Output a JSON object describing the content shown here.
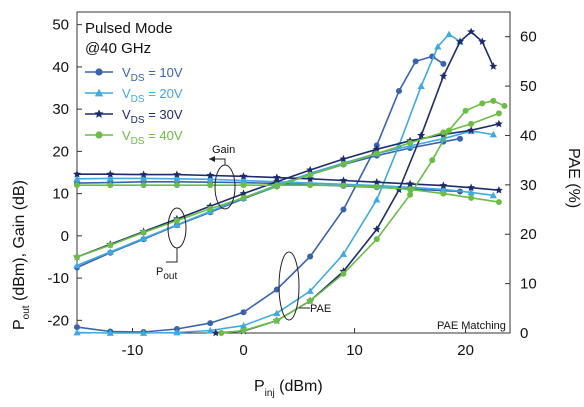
{
  "chart_data": {
    "type": "line",
    "title_lines": [
      "Pulsed Mode",
      "@40 GHz"
    ],
    "xlabel": {
      "main": "P",
      "sub": "inj",
      "rest": " (dBm)"
    },
    "ylabel_left": {
      "main": "P",
      "sub": "out",
      "rest": " (dBm), Gain (dB)"
    },
    "ylabel_right": "PAE (%)",
    "xlim": [
      -15,
      24
    ],
    "ylim_left": [
      -23,
      53
    ],
    "ylim_right": [
      0,
      65
    ],
    "x_ticks": [
      -10,
      0,
      10,
      20
    ],
    "y_left_ticks": [
      -20,
      -10,
      0,
      10,
      20,
      30,
      40,
      50
    ],
    "y_right_ticks": [
      0,
      10,
      20,
      30,
      40,
      50,
      60
    ],
    "legend_position": "top-left",
    "annotations": {
      "gain": "Gain",
      "pout_main": "P",
      "pout_sub": "out",
      "pae": "PAE",
      "matching": "PAE Matching"
    },
    "series": [
      {
        "name_main": "V",
        "name_sub": "DS",
        "name_rest": " = 10V",
        "color": "#3b62ad",
        "marker": "circle",
        "pout": [
          [
            -15,
            -7.5
          ],
          [
            -12,
            -4
          ],
          [
            -9,
            -0.8
          ],
          [
            -6,
            2.5
          ],
          [
            -3,
            5.6
          ],
          [
            0,
            8.8
          ],
          [
            3,
            11.7
          ],
          [
            6,
            14.5
          ],
          [
            9,
            16.9
          ],
          [
            12,
            19
          ],
          [
            15,
            20.8
          ],
          [
            18,
            22.3
          ],
          [
            19.5,
            23
          ]
        ],
        "gain": [
          [
            -15,
            12.5
          ],
          [
            -12,
            12.6
          ],
          [
            -9,
            12.8
          ],
          [
            -6,
            12.8
          ],
          [
            -3,
            12.7
          ],
          [
            0,
            12.6
          ],
          [
            3,
            12.4
          ],
          [
            6,
            12.1
          ],
          [
            9,
            11.8
          ],
          [
            12,
            11.5
          ],
          [
            15,
            11.1
          ],
          [
            18,
            10.7
          ],
          [
            19.5,
            10.5
          ]
        ],
        "pae": [
          [
            -15,
            1.2
          ],
          [
            -12,
            0.3
          ],
          [
            -9,
            0.2
          ],
          [
            -6,
            0.8
          ],
          [
            -3,
            2
          ],
          [
            0,
            4.2
          ],
          [
            3,
            8.8
          ],
          [
            6,
            15.5
          ],
          [
            9,
            25
          ],
          [
            12,
            38
          ],
          [
            14,
            49
          ],
          [
            15.5,
            55
          ],
          [
            17,
            56
          ],
          [
            18,
            54.5
          ]
        ]
      },
      {
        "name_main": "V",
        "name_sub": "DS",
        "name_rest": " = 20V",
        "color": "#40a9df",
        "marker": "triangle",
        "pout": [
          [
            -15,
            -7
          ],
          [
            -12,
            -3.8
          ],
          [
            -9,
            -0.6
          ],
          [
            -6,
            2.6
          ],
          [
            -3,
            5.8
          ],
          [
            0,
            9
          ],
          [
            3,
            12
          ],
          [
            6,
            14.8
          ],
          [
            9,
            17.2
          ],
          [
            12,
            19.5
          ],
          [
            15,
            21.3
          ],
          [
            18,
            23
          ],
          [
            20.5,
            24.8
          ],
          [
            22.5,
            24
          ]
        ],
        "gain": [
          [
            -15,
            13.5
          ],
          [
            -12,
            13.6
          ],
          [
            -9,
            13.6
          ],
          [
            -6,
            13.5
          ],
          [
            -3,
            13.4
          ],
          [
            0,
            13.1
          ],
          [
            3,
            12.8
          ],
          [
            6,
            12.5
          ],
          [
            9,
            12.2
          ],
          [
            12,
            11.9
          ],
          [
            15,
            11.5
          ],
          [
            18,
            11
          ],
          [
            20.5,
            10.3
          ],
          [
            22.5,
            9.6
          ]
        ],
        "pae": [
          [
            -15,
            0.1
          ],
          [
            -12,
            0
          ],
          [
            -9,
            0
          ],
          [
            -6,
            0.1
          ],
          [
            -3,
            0.5
          ],
          [
            0,
            1.5
          ],
          [
            3,
            4
          ],
          [
            6,
            8.5
          ],
          [
            9,
            16
          ],
          [
            12,
            27
          ],
          [
            14,
            38
          ],
          [
            16,
            50
          ],
          [
            17.5,
            58
          ],
          [
            18.5,
            60.5
          ],
          [
            19.5,
            59
          ]
        ]
      },
      {
        "name_main": "V",
        "name_sub": "DS",
        "name_rest": " = 30V",
        "color": "#1d2b6a",
        "marker": "star",
        "pout": [
          [
            -15,
            -5
          ],
          [
            -12,
            -2
          ],
          [
            -9,
            1
          ],
          [
            -6,
            4
          ],
          [
            -3,
            7
          ],
          [
            0,
            10
          ],
          [
            3,
            12.8
          ],
          [
            6,
            15.6
          ],
          [
            9,
            18.2
          ],
          [
            12,
            20.5
          ],
          [
            15,
            22.5
          ],
          [
            18,
            24
          ],
          [
            20.5,
            25
          ],
          [
            23,
            26.5
          ]
        ],
        "gain": [
          [
            -15,
            14.6
          ],
          [
            -12,
            14.6
          ],
          [
            -9,
            14.5
          ],
          [
            -6,
            14.5
          ],
          [
            -3,
            14.3
          ],
          [
            0,
            14.1
          ],
          [
            3,
            13.8
          ],
          [
            6,
            13.5
          ],
          [
            9,
            13.1
          ],
          [
            12,
            12.7
          ],
          [
            15,
            12.3
          ],
          [
            18,
            11.9
          ],
          [
            20.5,
            11.4
          ],
          [
            23,
            10.8
          ]
        ],
        "pae": [
          [
            -2.5,
            0
          ],
          [
            0,
            0.4
          ],
          [
            3,
            2.5
          ],
          [
            6,
            6.5
          ],
          [
            9,
            12.5
          ],
          [
            12,
            21
          ],
          [
            14,
            29
          ],
          [
            16,
            40
          ],
          [
            18,
            52
          ],
          [
            19.5,
            59
          ],
          [
            20.5,
            61
          ],
          [
            21.5,
            59
          ],
          [
            22.5,
            54
          ]
        ]
      },
      {
        "name_main": "V",
        "name_sub": "DS",
        "name_rest": " = 40V",
        "color": "#6bbd45",
        "marker": "circle",
        "pout": [
          [
            -15,
            -5
          ],
          [
            -12,
            -2.2
          ],
          [
            -9,
            0.8
          ],
          [
            -6,
            3.6
          ],
          [
            -3,
            6.4
          ],
          [
            0,
            9
          ],
          [
            3,
            11.8
          ],
          [
            6,
            14.5
          ],
          [
            9,
            17
          ],
          [
            12,
            19.5
          ],
          [
            15,
            22
          ],
          [
            18,
            24.5
          ],
          [
            20.5,
            26.5
          ],
          [
            23,
            29
          ]
        ],
        "gain": [
          [
            -15,
            12
          ],
          [
            -12,
            12
          ],
          [
            -9,
            12
          ],
          [
            -6,
            12
          ],
          [
            -3,
            12
          ],
          [
            0,
            12
          ],
          [
            3,
            12
          ],
          [
            6,
            12
          ],
          [
            9,
            11.9
          ],
          [
            12,
            11.6
          ],
          [
            15,
            11
          ],
          [
            18,
            10
          ],
          [
            20.5,
            9
          ],
          [
            23,
            8
          ]
        ],
        "pae": [
          [
            -2,
            0
          ],
          [
            0,
            0.5
          ],
          [
            3,
            2.5
          ],
          [
            6,
            6.5
          ],
          [
            9,
            12
          ],
          [
            12,
            19
          ],
          [
            15,
            28
          ],
          [
            17,
            35
          ],
          [
            18.5,
            41
          ],
          [
            20,
            45
          ],
          [
            21.5,
            46.5
          ],
          [
            22.5,
            47
          ],
          [
            23.5,
            46
          ]
        ]
      }
    ]
  }
}
